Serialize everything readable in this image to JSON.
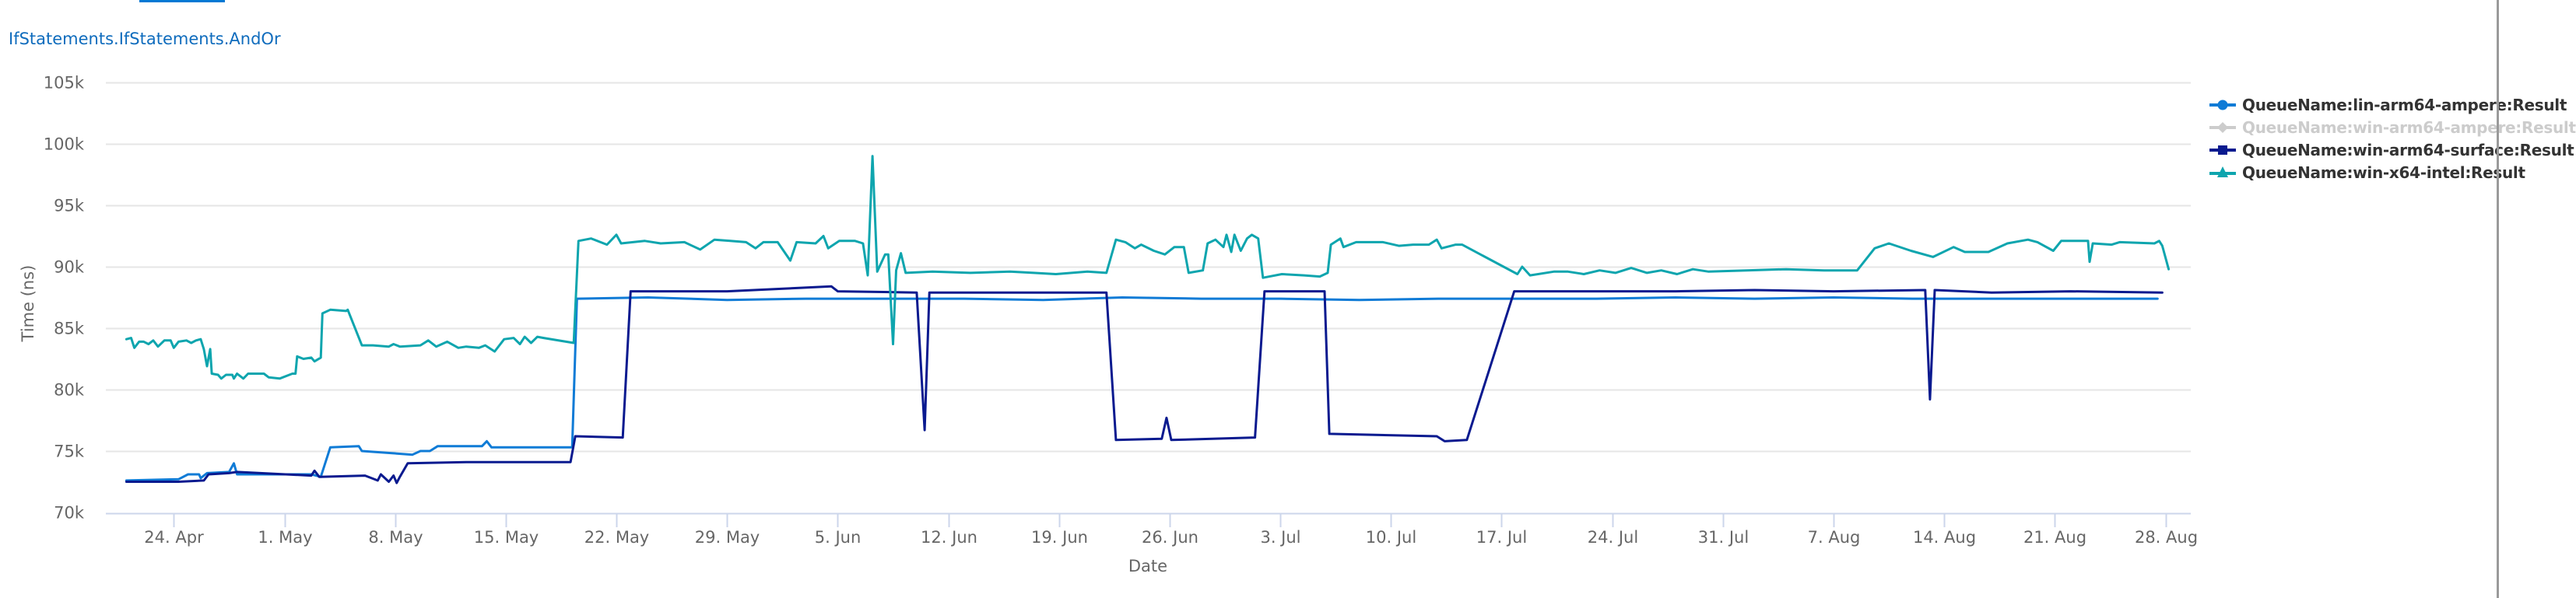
{
  "page": {
    "title": "IfStatements.IfStatements.AndOr"
  },
  "legend": {
    "items": [
      {
        "label": "QueueName:lin-arm64-ampere:Result",
        "color": "#0f7bd6",
        "symbol": "circle",
        "visible": true
      },
      {
        "label": "QueueName:win-arm64-ampere:Result",
        "color": "#cccccc",
        "symbol": "diamond",
        "visible": false
      },
      {
        "label": "QueueName:win-arm64-surface:Result",
        "color": "#0a1a8f",
        "symbol": "square",
        "visible": true
      },
      {
        "label": "QueueName:win-x64-intel:Result",
        "color": "#0ea5ae",
        "symbol": "triangle",
        "visible": true
      }
    ]
  },
  "chart_data": {
    "type": "line",
    "title": "IfStatements.IfStatements.AndOr",
    "xlabel": "Date",
    "ylabel": "Time (ns)",
    "ylim": [
      70000,
      105000
    ],
    "yticks": [
      70000,
      75000,
      80000,
      85000,
      90000,
      95000,
      100000,
      105000
    ],
    "ytick_labels": [
      "70k",
      "75k",
      "80k",
      "85k",
      "90k",
      "95k",
      "100k",
      "105k"
    ],
    "x_unit": "days since 24. Apr",
    "xlim": [
      -4.3,
      127.6
    ],
    "xticks": [
      0,
      7,
      14,
      21,
      28,
      35,
      42,
      49,
      56,
      63,
      70,
      77,
      84,
      91,
      98,
      105,
      112,
      119,
      126
    ],
    "xtick_labels": [
      "24. Apr",
      "1. May",
      "8. May",
      "15. May",
      "22. May",
      "29. May",
      "5. Jun",
      "12. Jun",
      "19. Jun",
      "26. Jun",
      "3. Jul",
      "10. Jul",
      "17. Jul",
      "24. Jul",
      "31. Jul",
      "7. Aug",
      "14. Aug",
      "21. Aug",
      "28. Aug"
    ],
    "grid": true,
    "legend_position": "right",
    "series": [
      {
        "name": "QueueName:lin-arm64-ampere:Result",
        "color": "#0f7bd6",
        "visible": true,
        "points": [
          [
            -3.0,
            72.6
          ],
          [
            0.3,
            72.7
          ],
          [
            0.9,
            73.1
          ],
          [
            1.6,
            73.1
          ],
          [
            1.7,
            72.8
          ],
          [
            2.1,
            73.2
          ],
          [
            3.5,
            73.3
          ],
          [
            3.8,
            74.0
          ],
          [
            4.0,
            73.1
          ],
          [
            8.7,
            73.1
          ],
          [
            9.3,
            72.9
          ],
          [
            9.9,
            75.3
          ],
          [
            11.7,
            75.4
          ],
          [
            11.9,
            75.0
          ],
          [
            15.1,
            74.7
          ],
          [
            15.6,
            75.0
          ],
          [
            16.2,
            75.0
          ],
          [
            16.7,
            75.4
          ],
          [
            19.5,
            75.4
          ],
          [
            19.8,
            75.8
          ],
          [
            20.1,
            75.3
          ],
          [
            25.2,
            75.3
          ],
          [
            25.5,
            87.4
          ],
          [
            30,
            87.5
          ],
          [
            35,
            87.3
          ],
          [
            40,
            87.4
          ],
          [
            45,
            87.4
          ],
          [
            50,
            87.4
          ],
          [
            55,
            87.3
          ],
          [
            60,
            87.5
          ],
          [
            65,
            87.4
          ],
          [
            70,
            87.4
          ],
          [
            75,
            87.3
          ],
          [
            80,
            87.4
          ],
          [
            85,
            87.4
          ],
          [
            90,
            87.4
          ],
          [
            95,
            87.5
          ],
          [
            100,
            87.4
          ],
          [
            105,
            87.5
          ],
          [
            110,
            87.4
          ],
          [
            115,
            87.4
          ],
          [
            120,
            87.4
          ],
          [
            125.5,
            87.4
          ]
        ]
      },
      {
        "name": "QueueName:win-arm64-ampere:Result",
        "color": "#cccccc",
        "visible": false,
        "points": []
      },
      {
        "name": "QueueName:win-arm64-surface:Result",
        "color": "#0a1a8f",
        "visible": true,
        "points": [
          [
            -3.0,
            72.5
          ],
          [
            0.3,
            72.5
          ],
          [
            1.9,
            72.6
          ],
          [
            2.2,
            73.1
          ],
          [
            3.5,
            73.2
          ],
          [
            4.0,
            73.3
          ],
          [
            8.7,
            73.0
          ],
          [
            8.9,
            73.4
          ],
          [
            9.2,
            72.9
          ],
          [
            12.1,
            73.0
          ],
          [
            12.9,
            72.6
          ],
          [
            13.1,
            73.1
          ],
          [
            13.6,
            72.5
          ],
          [
            13.9,
            73.0
          ],
          [
            14.1,
            72.4
          ],
          [
            14.3,
            72.9
          ],
          [
            14.8,
            74.0
          ],
          [
            18.5,
            74.1
          ],
          [
            25.1,
            74.1
          ],
          [
            25.4,
            76.2
          ],
          [
            28.4,
            76.1
          ],
          [
            28.9,
            88.0
          ],
          [
            35,
            88.0
          ],
          [
            41.6,
            88.4
          ],
          [
            42,
            88.0
          ],
          [
            47.0,
            87.9
          ],
          [
            47.5,
            76.7
          ],
          [
            47.8,
            87.9
          ],
          [
            55,
            87.9
          ],
          [
            59.0,
            87.9
          ],
          [
            59.6,
            75.9
          ],
          [
            62.5,
            76.0
          ],
          [
            62.8,
            77.7
          ],
          [
            63.1,
            75.9
          ],
          [
            68.4,
            76.1
          ],
          [
            69.0,
            88.0
          ],
          [
            72.8,
            88.0
          ],
          [
            73.1,
            76.4
          ],
          [
            79.9,
            76.2
          ],
          [
            80.4,
            75.8
          ],
          [
            81.8,
            75.9
          ],
          [
            84.8,
            88.0
          ],
          [
            90,
            88.0
          ],
          [
            95,
            88.0
          ],
          [
            100,
            88.1
          ],
          [
            105,
            88.0
          ],
          [
            110.8,
            88.1
          ],
          [
            111.1,
            79.2
          ],
          [
            111.4,
            88.1
          ],
          [
            115,
            87.9
          ],
          [
            120,
            88.0
          ],
          [
            125.8,
            87.9
          ]
        ]
      },
      {
        "name": "QueueName:win-x64-intel:Result",
        "color": "#0ea5ae",
        "visible": true,
        "points": [
          [
            -3.0,
            84.1
          ],
          [
            -2.7,
            84.2
          ],
          [
            -2.5,
            83.4
          ],
          [
            -2.2,
            83.9
          ],
          [
            -1.9,
            83.9
          ],
          [
            -1.6,
            83.7
          ],
          [
            -1.3,
            84.0
          ],
          [
            -1.0,
            83.5
          ],
          [
            -0.6,
            84.0
          ],
          [
            -0.2,
            84.0
          ],
          [
            0,
            83.4
          ],
          [
            0.3,
            83.9
          ],
          [
            0.8,
            84.0
          ],
          [
            1.1,
            83.8
          ],
          [
            1.4,
            84.0
          ],
          [
            1.7,
            84.1
          ],
          [
            1.9,
            83.3
          ],
          [
            2.1,
            81.9
          ],
          [
            2.3,
            83.3
          ],
          [
            2.4,
            81.3
          ],
          [
            2.8,
            81.2
          ],
          [
            3.0,
            80.9
          ],
          [
            3.3,
            81.2
          ],
          [
            3.7,
            81.2
          ],
          [
            3.8,
            80.9
          ],
          [
            4.0,
            81.3
          ],
          [
            4.4,
            80.9
          ],
          [
            4.7,
            81.3
          ],
          [
            5.7,
            81.3
          ],
          [
            6.0,
            81.0
          ],
          [
            6.7,
            80.9
          ],
          [
            7.5,
            81.3
          ],
          [
            7.7,
            81.3
          ],
          [
            7.8,
            82.7
          ],
          [
            8.2,
            82.5
          ],
          [
            8.7,
            82.6
          ],
          [
            8.9,
            82.3
          ],
          [
            9.3,
            82.6
          ],
          [
            9.4,
            86.2
          ],
          [
            9.9,
            86.5
          ],
          [
            10.9,
            86.4
          ],
          [
            11.0,
            86.5
          ],
          [
            11.9,
            83.6
          ],
          [
            12.6,
            83.6
          ],
          [
            13.6,
            83.5
          ],
          [
            13.9,
            83.7
          ],
          [
            14.3,
            83.5
          ],
          [
            15.6,
            83.6
          ],
          [
            16.1,
            84.0
          ],
          [
            16.6,
            83.5
          ],
          [
            17.3,
            83.9
          ],
          [
            18.0,
            83.4
          ],
          [
            18.5,
            83.5
          ],
          [
            19.3,
            83.4
          ],
          [
            19.7,
            83.6
          ],
          [
            20.3,
            83.1
          ],
          [
            20.9,
            84.1
          ],
          [
            21.5,
            84.2
          ],
          [
            21.9,
            83.7
          ],
          [
            22.2,
            84.3
          ],
          [
            22.6,
            83.8
          ],
          [
            23.0,
            84.3
          ],
          [
            23.4,
            84.2
          ],
          [
            25.3,
            83.8
          ],
          [
            25.6,
            92.1
          ],
          [
            26.4,
            92.3
          ],
          [
            27.4,
            91.8
          ],
          [
            28.0,
            92.6
          ],
          [
            28.3,
            91.9
          ],
          [
            29.8,
            92.1
          ],
          [
            30.8,
            91.9
          ],
          [
            32.3,
            92.0
          ],
          [
            33.3,
            91.4
          ],
          [
            34.2,
            92.2
          ],
          [
            35.2,
            92.1
          ],
          [
            36.2,
            92.0
          ],
          [
            36.8,
            91.5
          ],
          [
            37.3,
            92.0
          ],
          [
            38.2,
            92.0
          ],
          [
            39.0,
            90.5
          ],
          [
            39.4,
            92.0
          ],
          [
            40.6,
            91.9
          ],
          [
            41.1,
            92.5
          ],
          [
            41.4,
            91.5
          ],
          [
            42.1,
            92.1
          ],
          [
            43.1,
            92.1
          ],
          [
            43.6,
            91.9
          ],
          [
            43.9,
            89.3
          ],
          [
            44.2,
            99.0
          ],
          [
            44.5,
            89.6
          ],
          [
            45.0,
            91.0
          ],
          [
            45.2,
            91.0
          ],
          [
            45.5,
            83.7
          ],
          [
            45.7,
            89.7
          ],
          [
            46.0,
            91.1
          ],
          [
            46.3,
            89.5
          ],
          [
            48.0,
            89.6
          ],
          [
            50.4,
            89.5
          ],
          [
            52.9,
            89.6
          ],
          [
            54.4,
            89.5
          ],
          [
            55.8,
            89.4
          ],
          [
            57.8,
            89.6
          ],
          [
            59.0,
            89.5
          ],
          [
            59.6,
            92.2
          ],
          [
            60.2,
            92.0
          ],
          [
            60.8,
            91.5
          ],
          [
            61.2,
            91.8
          ],
          [
            62.0,
            91.3
          ],
          [
            62.7,
            91.0
          ],
          [
            63.3,
            91.6
          ],
          [
            63.9,
            91.6
          ],
          [
            64.2,
            89.5
          ],
          [
            65.1,
            89.7
          ],
          [
            65.4,
            91.9
          ],
          [
            65.9,
            92.2
          ],
          [
            66.4,
            91.6
          ],
          [
            66.6,
            92.6
          ],
          [
            66.9,
            91.2
          ],
          [
            67.1,
            92.6
          ],
          [
            67.5,
            91.3
          ],
          [
            67.9,
            92.3
          ],
          [
            68.2,
            92.6
          ],
          [
            68.6,
            92.3
          ],
          [
            68.9,
            89.1
          ],
          [
            70.1,
            89.4
          ],
          [
            71.5,
            89.3
          ],
          [
            72.5,
            89.2
          ],
          [
            73.0,
            89.5
          ],
          [
            73.2,
            91.8
          ],
          [
            73.8,
            92.3
          ],
          [
            74.0,
            91.6
          ],
          [
            74.8,
            92.0
          ],
          [
            76.5,
            92.0
          ],
          [
            77.5,
            91.7
          ],
          [
            78.4,
            91.8
          ],
          [
            79.4,
            91.8
          ],
          [
            79.9,
            92.2
          ],
          [
            80.2,
            91.5
          ],
          [
            81.1,
            91.8
          ],
          [
            81.5,
            91.8
          ],
          [
            85.0,
            89.4
          ],
          [
            85.3,
            90.0
          ],
          [
            85.8,
            89.3
          ],
          [
            87.3,
            89.6
          ],
          [
            88.2,
            89.6
          ],
          [
            89.2,
            89.4
          ],
          [
            90.2,
            89.7
          ],
          [
            91.2,
            89.5
          ],
          [
            92.2,
            89.9
          ],
          [
            93.2,
            89.5
          ],
          [
            94.1,
            89.7
          ],
          [
            95.1,
            89.4
          ],
          [
            96.1,
            89.8
          ],
          [
            97.1,
            89.6
          ],
          [
            99.5,
            89.7
          ],
          [
            102.0,
            89.8
          ],
          [
            104.4,
            89.7
          ],
          [
            106.5,
            89.7
          ],
          [
            107.6,
            91.5
          ],
          [
            108.5,
            91.9
          ],
          [
            109.9,
            91.3
          ],
          [
            111.3,
            90.8
          ],
          [
            112.6,
            91.6
          ],
          [
            113.3,
            91.2
          ],
          [
            114.8,
            91.2
          ],
          [
            116.0,
            91.9
          ],
          [
            117.3,
            92.2
          ],
          [
            117.9,
            92.0
          ],
          [
            118.9,
            91.3
          ],
          [
            119.4,
            92.1
          ],
          [
            120.6,
            92.1
          ],
          [
            121.1,
            92.1
          ],
          [
            121.2,
            90.4
          ],
          [
            121.4,
            91.9
          ],
          [
            122.6,
            91.8
          ],
          [
            123.1,
            92.0
          ],
          [
            125.3,
            91.9
          ],
          [
            125.6,
            92.1
          ],
          [
            125.8,
            91.7
          ],
          [
            126.2,
            89.8
          ]
        ]
      }
    ]
  }
}
